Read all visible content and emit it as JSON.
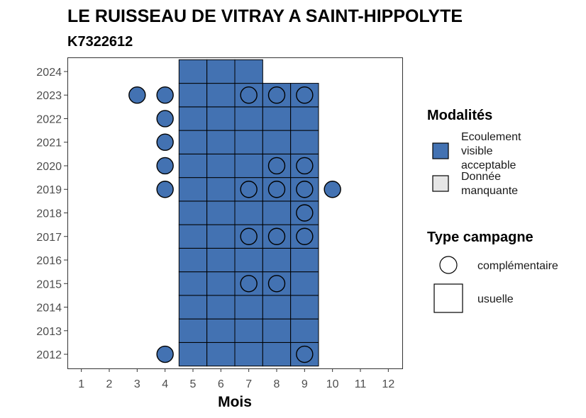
{
  "chart_data": {
    "type": "heatmap",
    "title": "LE RUISSEAU DE VITRAY A SAINT-HIPPOLYTE",
    "subtitle": "K7322612",
    "xlabel": "Mois",
    "ylabel": "",
    "x_ticks": [
      1,
      2,
      3,
      4,
      5,
      6,
      7,
      8,
      9,
      10,
      11,
      12
    ],
    "y_ticks": [
      2012,
      2013,
      2014,
      2015,
      2016,
      2017,
      2018,
      2019,
      2020,
      2021,
      2022,
      2023,
      2024
    ],
    "xlim": [
      0.5,
      12.5
    ],
    "ylim": [
      2011.4,
      2024.6
    ],
    "colors": {
      "ecoulement_visible_acceptable": "#4372b2",
      "donnee_manquante": "#e6e6e6"
    },
    "legend_placement": "right",
    "legend": {
      "modalites_title": "Modalités",
      "modalites": [
        {
          "label_lines": [
            "Ecoulement",
            "visible",
            "acceptable"
          ],
          "color": "#4372b2"
        },
        {
          "label_lines": [
            "Donnée",
            "manquante"
          ],
          "color": "#e6e6e6"
        }
      ],
      "type_title": "Type campagne",
      "types": [
        {
          "shape": "circle",
          "label": "complémentaire"
        },
        {
          "shape": "square",
          "label": "usuelle"
        }
      ]
    },
    "usuelle_squares": [
      {
        "year": 2012,
        "months": [
          5,
          6,
          7,
          8,
          9
        ]
      },
      {
        "year": 2013,
        "months": [
          5,
          6,
          7,
          8,
          9
        ]
      },
      {
        "year": 2014,
        "months": [
          5,
          6,
          7,
          8,
          9
        ]
      },
      {
        "year": 2015,
        "months": [
          5,
          6,
          7,
          8,
          9
        ]
      },
      {
        "year": 2016,
        "months": [
          5,
          6,
          7,
          8,
          9
        ]
      },
      {
        "year": 2017,
        "months": [
          5,
          6,
          7,
          8,
          9
        ]
      },
      {
        "year": 2018,
        "months": [
          5,
          6,
          7,
          8,
          9
        ]
      },
      {
        "year": 2019,
        "months": [
          5,
          6,
          7,
          8,
          9
        ]
      },
      {
        "year": 2020,
        "months": [
          5,
          6,
          7,
          8,
          9
        ]
      },
      {
        "year": 2021,
        "months": [
          5,
          6,
          7,
          8,
          9
        ]
      },
      {
        "year": 2022,
        "months": [
          5,
          6,
          7,
          8,
          9
        ]
      },
      {
        "year": 2023,
        "months": [
          5,
          6,
          7,
          8,
          9
        ]
      },
      {
        "year": 2024,
        "months": [
          5,
          6,
          7
        ]
      }
    ],
    "complementaire_circles": [
      {
        "year": 2012,
        "months": [
          4,
          9
        ]
      },
      {
        "year": 2015,
        "months": [
          7,
          8
        ]
      },
      {
        "year": 2017,
        "months": [
          7,
          8,
          9
        ]
      },
      {
        "year": 2018,
        "months": [
          9
        ]
      },
      {
        "year": 2019,
        "months": [
          4,
          7,
          8,
          9,
          10
        ]
      },
      {
        "year": 2020,
        "months": [
          4,
          8,
          9
        ]
      },
      {
        "year": 2021,
        "months": [
          4
        ]
      },
      {
        "year": 2022,
        "months": [
          4
        ]
      },
      {
        "year": 2023,
        "months": [
          3,
          4,
          7,
          8,
          9
        ]
      }
    ]
  }
}
